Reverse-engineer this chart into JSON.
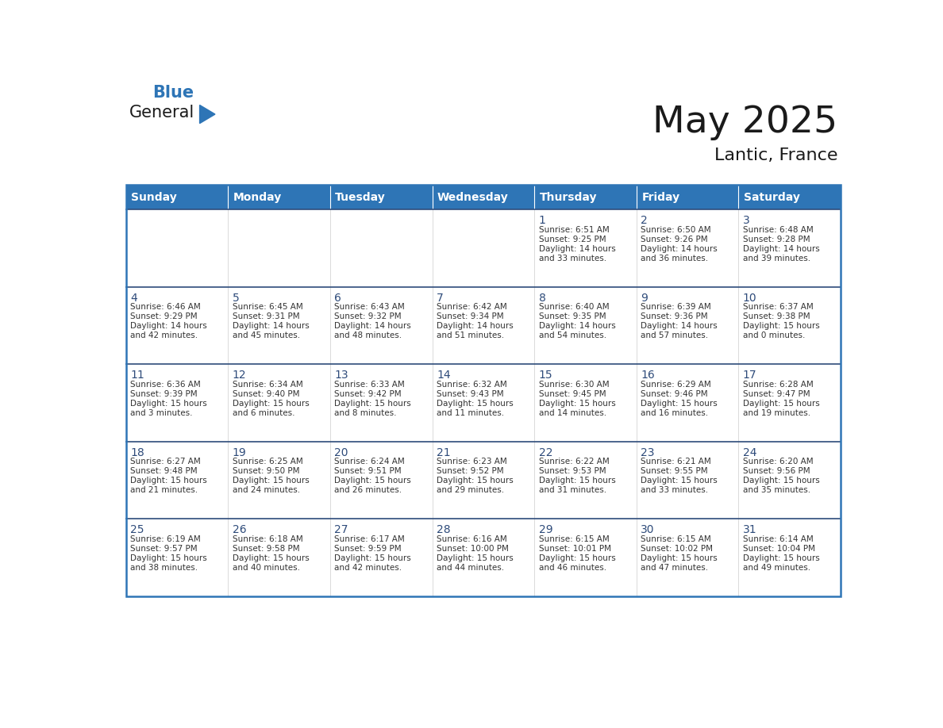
{
  "title": "May 2025",
  "subtitle": "Lantic, France",
  "header_color": "#2E75B6",
  "header_text_color": "#FFFFFF",
  "cell_bg": "#FFFFFF",
  "row_separator_color": "#2E4B7A",
  "col_separator_color": "#CCCCCC",
  "border_color": "#2E75B6",
  "day_num_color": "#2E4B7A",
  "text_color": "#333333",
  "days_of_week": [
    "Sunday",
    "Monday",
    "Tuesday",
    "Wednesday",
    "Thursday",
    "Friday",
    "Saturday"
  ],
  "weeks": [
    [
      {
        "day": "",
        "text": ""
      },
      {
        "day": "",
        "text": ""
      },
      {
        "day": "",
        "text": ""
      },
      {
        "day": "",
        "text": ""
      },
      {
        "day": "1",
        "text": "Sunrise: 6:51 AM\nSunset: 9:25 PM\nDaylight: 14 hours\nand 33 minutes."
      },
      {
        "day": "2",
        "text": "Sunrise: 6:50 AM\nSunset: 9:26 PM\nDaylight: 14 hours\nand 36 minutes."
      },
      {
        "day": "3",
        "text": "Sunrise: 6:48 AM\nSunset: 9:28 PM\nDaylight: 14 hours\nand 39 minutes."
      }
    ],
    [
      {
        "day": "4",
        "text": "Sunrise: 6:46 AM\nSunset: 9:29 PM\nDaylight: 14 hours\nand 42 minutes."
      },
      {
        "day": "5",
        "text": "Sunrise: 6:45 AM\nSunset: 9:31 PM\nDaylight: 14 hours\nand 45 minutes."
      },
      {
        "day": "6",
        "text": "Sunrise: 6:43 AM\nSunset: 9:32 PM\nDaylight: 14 hours\nand 48 minutes."
      },
      {
        "day": "7",
        "text": "Sunrise: 6:42 AM\nSunset: 9:34 PM\nDaylight: 14 hours\nand 51 minutes."
      },
      {
        "day": "8",
        "text": "Sunrise: 6:40 AM\nSunset: 9:35 PM\nDaylight: 14 hours\nand 54 minutes."
      },
      {
        "day": "9",
        "text": "Sunrise: 6:39 AM\nSunset: 9:36 PM\nDaylight: 14 hours\nand 57 minutes."
      },
      {
        "day": "10",
        "text": "Sunrise: 6:37 AM\nSunset: 9:38 PM\nDaylight: 15 hours\nand 0 minutes."
      }
    ],
    [
      {
        "day": "11",
        "text": "Sunrise: 6:36 AM\nSunset: 9:39 PM\nDaylight: 15 hours\nand 3 minutes."
      },
      {
        "day": "12",
        "text": "Sunrise: 6:34 AM\nSunset: 9:40 PM\nDaylight: 15 hours\nand 6 minutes."
      },
      {
        "day": "13",
        "text": "Sunrise: 6:33 AM\nSunset: 9:42 PM\nDaylight: 15 hours\nand 8 minutes."
      },
      {
        "day": "14",
        "text": "Sunrise: 6:32 AM\nSunset: 9:43 PM\nDaylight: 15 hours\nand 11 minutes."
      },
      {
        "day": "15",
        "text": "Sunrise: 6:30 AM\nSunset: 9:45 PM\nDaylight: 15 hours\nand 14 minutes."
      },
      {
        "day": "16",
        "text": "Sunrise: 6:29 AM\nSunset: 9:46 PM\nDaylight: 15 hours\nand 16 minutes."
      },
      {
        "day": "17",
        "text": "Sunrise: 6:28 AM\nSunset: 9:47 PM\nDaylight: 15 hours\nand 19 minutes."
      }
    ],
    [
      {
        "day": "18",
        "text": "Sunrise: 6:27 AM\nSunset: 9:48 PM\nDaylight: 15 hours\nand 21 minutes."
      },
      {
        "day": "19",
        "text": "Sunrise: 6:25 AM\nSunset: 9:50 PM\nDaylight: 15 hours\nand 24 minutes."
      },
      {
        "day": "20",
        "text": "Sunrise: 6:24 AM\nSunset: 9:51 PM\nDaylight: 15 hours\nand 26 minutes."
      },
      {
        "day": "21",
        "text": "Sunrise: 6:23 AM\nSunset: 9:52 PM\nDaylight: 15 hours\nand 29 minutes."
      },
      {
        "day": "22",
        "text": "Sunrise: 6:22 AM\nSunset: 9:53 PM\nDaylight: 15 hours\nand 31 minutes."
      },
      {
        "day": "23",
        "text": "Sunrise: 6:21 AM\nSunset: 9:55 PM\nDaylight: 15 hours\nand 33 minutes."
      },
      {
        "day": "24",
        "text": "Sunrise: 6:20 AM\nSunset: 9:56 PM\nDaylight: 15 hours\nand 35 minutes."
      }
    ],
    [
      {
        "day": "25",
        "text": "Sunrise: 6:19 AM\nSunset: 9:57 PM\nDaylight: 15 hours\nand 38 minutes."
      },
      {
        "day": "26",
        "text": "Sunrise: 6:18 AM\nSunset: 9:58 PM\nDaylight: 15 hours\nand 40 minutes."
      },
      {
        "day": "27",
        "text": "Sunrise: 6:17 AM\nSunset: 9:59 PM\nDaylight: 15 hours\nand 42 minutes."
      },
      {
        "day": "28",
        "text": "Sunrise: 6:16 AM\nSunset: 10:00 PM\nDaylight: 15 hours\nand 44 minutes."
      },
      {
        "day": "29",
        "text": "Sunrise: 6:15 AM\nSunset: 10:01 PM\nDaylight: 15 hours\nand 46 minutes."
      },
      {
        "day": "30",
        "text": "Sunrise: 6:15 AM\nSunset: 10:02 PM\nDaylight: 15 hours\nand 47 minutes."
      },
      {
        "day": "31",
        "text": "Sunrise: 6:14 AM\nSunset: 10:04 PM\nDaylight: 15 hours\nand 49 minutes."
      }
    ]
  ],
  "logo_text1": "General",
  "logo_text2": "Blue",
  "logo_color1": "#1A1A1A",
  "logo_color2": "#2E75B6",
  "logo_triangle_color": "#2E75B6",
  "title_fontsize": 34,
  "subtitle_fontsize": 16,
  "header_fontsize": 10,
  "day_num_fontsize": 10,
  "cell_text_fontsize": 7.5
}
